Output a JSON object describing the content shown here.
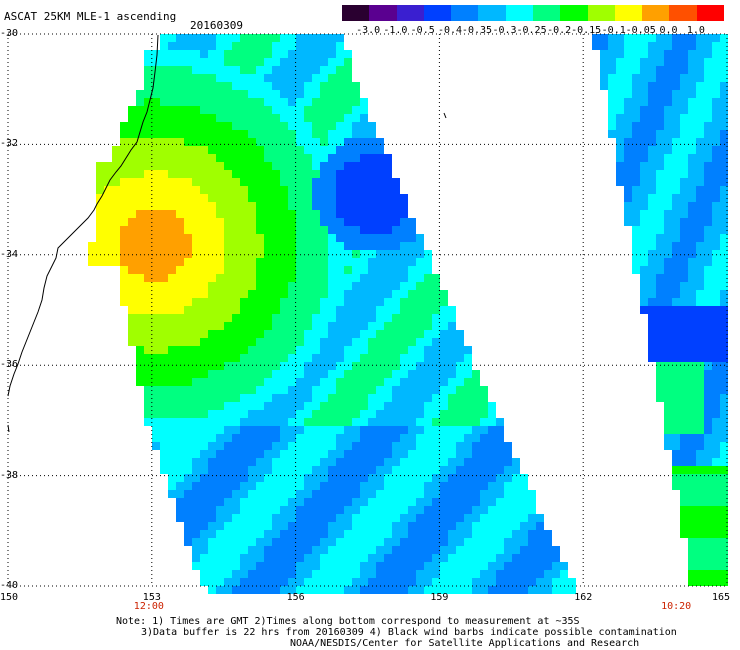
{
  "header": {
    "title": "ASCAT 25KM MLE-1 ascending",
    "date": "20160309"
  },
  "colorbar": {
    "colors": [
      "#2a0030",
      "#5a0090",
      "#3a1fd0",
      "#0040ff",
      "#0080ff",
      "#00b8ff",
      "#00ffff",
      "#00ff80",
      "#00ff00",
      "#a0ff00",
      "#ffff00",
      "#ffa000",
      "#ff5000",
      "#ff0000"
    ],
    "labels": [
      "-3.0",
      "-1.0",
      "-0.5",
      "-0.4",
      "-0.35",
      "-0.3",
      "-0.25",
      "-0.2",
      "-0.15",
      "-0.1",
      "-0.05",
      "0.0",
      "1.0"
    ]
  },
  "map": {
    "lat_labels": [
      "-30",
      "-32",
      "-34",
      "-36",
      "-38",
      "-40"
    ],
    "lon_labels": [
      "150",
      "153",
      "156",
      "159",
      "162",
      "165"
    ],
    "pass_times": [
      {
        "label": "12:00",
        "lon": 153
      },
      {
        "label": "10:20",
        "lon": 164
      }
    ],
    "extent": {
      "lon": [
        150,
        165
      ],
      "lat": [
        -40,
        -30
      ]
    }
  },
  "notes": {
    "line1": "Note: 1) Times are GMT 2)Times along bottom correspond to measurement at ~35S",
    "line2": "3)Data buffer is 22 hrs from 20160309 4) Black wind barbs indicate possible contamination",
    "line3": "NOAA/NESDIS/Center for Satellite Applications and Research"
  },
  "colors": {
    "accent_time": "#cc2200"
  }
}
